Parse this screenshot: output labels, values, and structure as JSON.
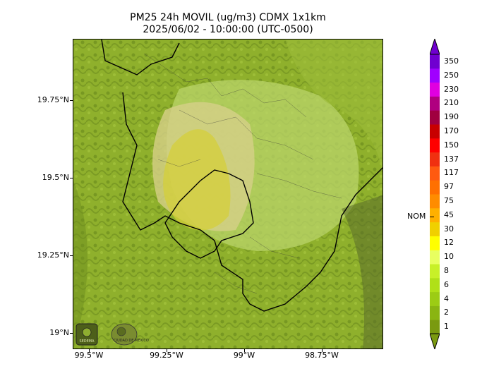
{
  "title": {
    "line1": "PM25 24h MOVIL (ug/m3) CDMX 1x1km",
    "line2": "2025/06/02 - 10:00:00 (UTC-0500)"
  },
  "map": {
    "lat_labels": [
      "19.75°N",
      "19.5°N",
      "19.25°N",
      "19°N"
    ],
    "lon_labels": [
      "99.5°W",
      "99.25°W",
      "99°W",
      "98.75°W"
    ],
    "logos": {
      "left_text": "SEDEMA",
      "right_text": "CIUDAD DE MÉXICO"
    }
  },
  "colorbar": {
    "levels": [
      "1",
      "2",
      "4",
      "6",
      "8",
      "10",
      "12",
      "30",
      "45",
      "75",
      "97",
      "117",
      "137",
      "150",
      "170",
      "190",
      "210",
      "230",
      "250",
      "350"
    ],
    "colors": [
      "#7a9a10",
      "#8ab512",
      "#9ccc14",
      "#b0e018",
      "#c8f028",
      "#e8ff60",
      "#ffff00",
      "#f0d000",
      "#ffb000",
      "#ff8c00",
      "#ff7000",
      "#ff5a10",
      "#f03010",
      "#ff0000",
      "#c80000",
      "#a00040",
      "#b00080",
      "#e000e0",
      "#a000ff",
      "#7000d0"
    ],
    "nom_label": "NOM"
  }
}
